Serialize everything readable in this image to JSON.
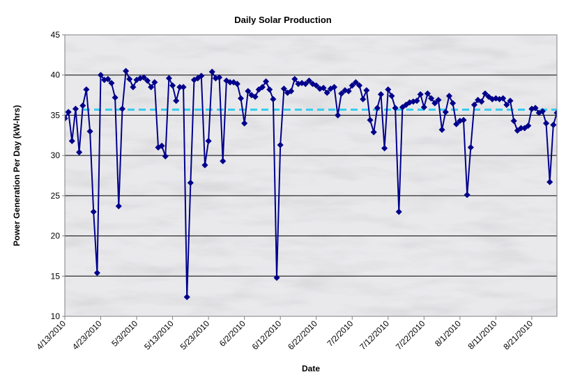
{
  "chart_data": {
    "type": "line",
    "title": "Daily Solar Production",
    "xlabel": "Date",
    "ylabel": "Power Generation Per Day (kW-hrs)",
    "ylim": [
      10,
      45
    ],
    "yticks": [
      10,
      15,
      20,
      25,
      30,
      35,
      40,
      45
    ],
    "xlim": [
      "2010-04-13",
      "2010-08-28"
    ],
    "xticks": [
      "4/13/2010",
      "4/23/2010",
      "5/3/2010",
      "5/13/2010",
      "5/23/2010",
      "6/2/2010",
      "6/12/2010",
      "6/22/2010",
      "7/2/2010",
      "7/12/2010",
      "7/22/2010",
      "8/1/2010",
      "8/11/2010",
      "8/21/2010"
    ],
    "grid": "horizontal",
    "background": "marble texture",
    "series": [
      {
        "marker": "diamond",
        "color": "#00008B",
        "x_start": "2010-04-13",
        "x_step_days": 1,
        "values": [
          34.6,
          35.4,
          31.8,
          35.8,
          30.4,
          36.2,
          38.2,
          33.0,
          23.0,
          15.4,
          40.0,
          39.4,
          39.5,
          39.0,
          37.2,
          23.7,
          35.8,
          40.5,
          39.5,
          38.5,
          39.4,
          39.6,
          39.7,
          39.3,
          38.5,
          39.1,
          31.0,
          31.2,
          29.9,
          39.6,
          38.7,
          36.8,
          38.5,
          38.5,
          12.4,
          26.6,
          39.4,
          39.6,
          39.9,
          28.8,
          31.8,
          40.4,
          39.6,
          39.7,
          29.3,
          39.3,
          39.1,
          39.1,
          38.9,
          37.1,
          34.0,
          38.0,
          37.5,
          37.3,
          38.2,
          38.5,
          39.2,
          38.2,
          37.0,
          14.8,
          31.3,
          38.3,
          37.8,
          38.0,
          39.5,
          38.9,
          39.0,
          38.9,
          39.3,
          38.9,
          38.7,
          38.3,
          38.4,
          37.8,
          38.3,
          38.5,
          35.0,
          37.7,
          38.1,
          38.0,
          38.7,
          39.1,
          38.7,
          37.0,
          38.1,
          34.4,
          32.9,
          35.9,
          37.6,
          30.9,
          38.2,
          37.4,
          35.9,
          23.0,
          36.0,
          36.3,
          36.6,
          36.7,
          36.8,
          37.6,
          36.0,
          37.7,
          37.1,
          36.5,
          36.9,
          33.2,
          35.4,
          37.4,
          36.5,
          33.9,
          34.3,
          34.4,
          25.1,
          31.0,
          36.3,
          36.9,
          36.7,
          37.7,
          37.3,
          37.0,
          37.1,
          37.0,
          37.1,
          36.3,
          36.8,
          34.3,
          33.1,
          33.4,
          33.4,
          33.7,
          35.8,
          35.9,
          35.3,
          35.5,
          34.0,
          26.7,
          33.8,
          35.3
        ]
      }
    ],
    "reference_lines": [
      {
        "y": 35.7,
        "style": "dashed",
        "color": "#33CCEE"
      }
    ]
  }
}
